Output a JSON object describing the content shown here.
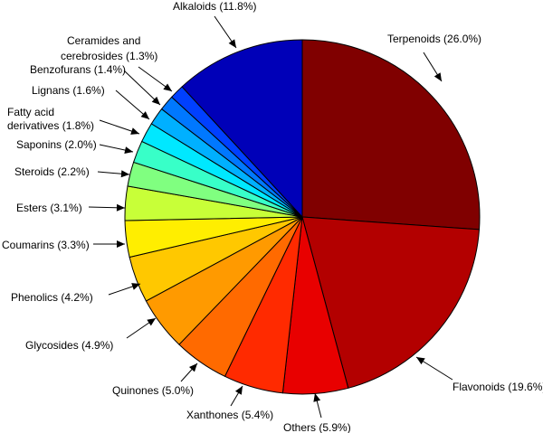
{
  "chart_data": {
    "type": "pie",
    "title": "",
    "start": "12 o'clock",
    "direction": "clockwise",
    "slices": [
      {
        "name": "Terpenoids",
        "label": "Terpenoids (26.0%)",
        "value": 26.0,
        "color": "#800000"
      },
      {
        "name": "Flavonoids",
        "label": "Flavonoids (19.6%)",
        "value": 19.6,
        "color": "#b30000"
      },
      {
        "name": "Others",
        "label": "Others (5.9%)",
        "value": 5.9,
        "color": "#e80000"
      },
      {
        "name": "Xanthones",
        "label": "Xanthones (5.4%)",
        "value": 5.4,
        "color": "#ff2a00"
      },
      {
        "name": "Quinones",
        "label": "Quinones (5.0%)",
        "value": 5.0,
        "color": "#ff6a00"
      },
      {
        "name": "Glycosides",
        "label": "Glycosides (4.9%)",
        "value": 4.9,
        "color": "#ff9a00"
      },
      {
        "name": "Phenolics",
        "label": "Phenolics (4.2%)",
        "value": 4.2,
        "color": "#ffc800"
      },
      {
        "name": "Coumarins",
        "label": "Coumarins (3.3%)",
        "value": 3.3,
        "color": "#ffee00"
      },
      {
        "name": "Esters",
        "label": "Esters (3.1%)",
        "value": 3.1,
        "color": "#c8ff38"
      },
      {
        "name": "Steroids",
        "label": "Steroids (2.2%)",
        "value": 2.2,
        "color": "#80ff80"
      },
      {
        "name": "Saponins",
        "label": "Saponins (2.0%)",
        "value": 2.0,
        "color": "#38ffc8"
      },
      {
        "name": "Fatty acid derivatives",
        "label": "Fatty acid derivatives (1.8%)",
        "value": 1.8,
        "color": "#00e8ff"
      },
      {
        "name": "Lignans",
        "label": "Lignans (1.6%)",
        "value": 1.6,
        "color": "#00b0ff"
      },
      {
        "name": "Benzofurans",
        "label": "Benzofurans (1.4%)",
        "value": 1.4,
        "color": "#0078ff"
      },
      {
        "name": "Ceramides and cerebrosides",
        "label": "Ceramides and cerebrosides (1.3%)",
        "value": 1.3,
        "color": "#0040ff"
      },
      {
        "name": "Alkaloids",
        "label": "Alkaloids (11.8%)",
        "value": 11.8,
        "color": "#0000b8"
      }
    ]
  }
}
